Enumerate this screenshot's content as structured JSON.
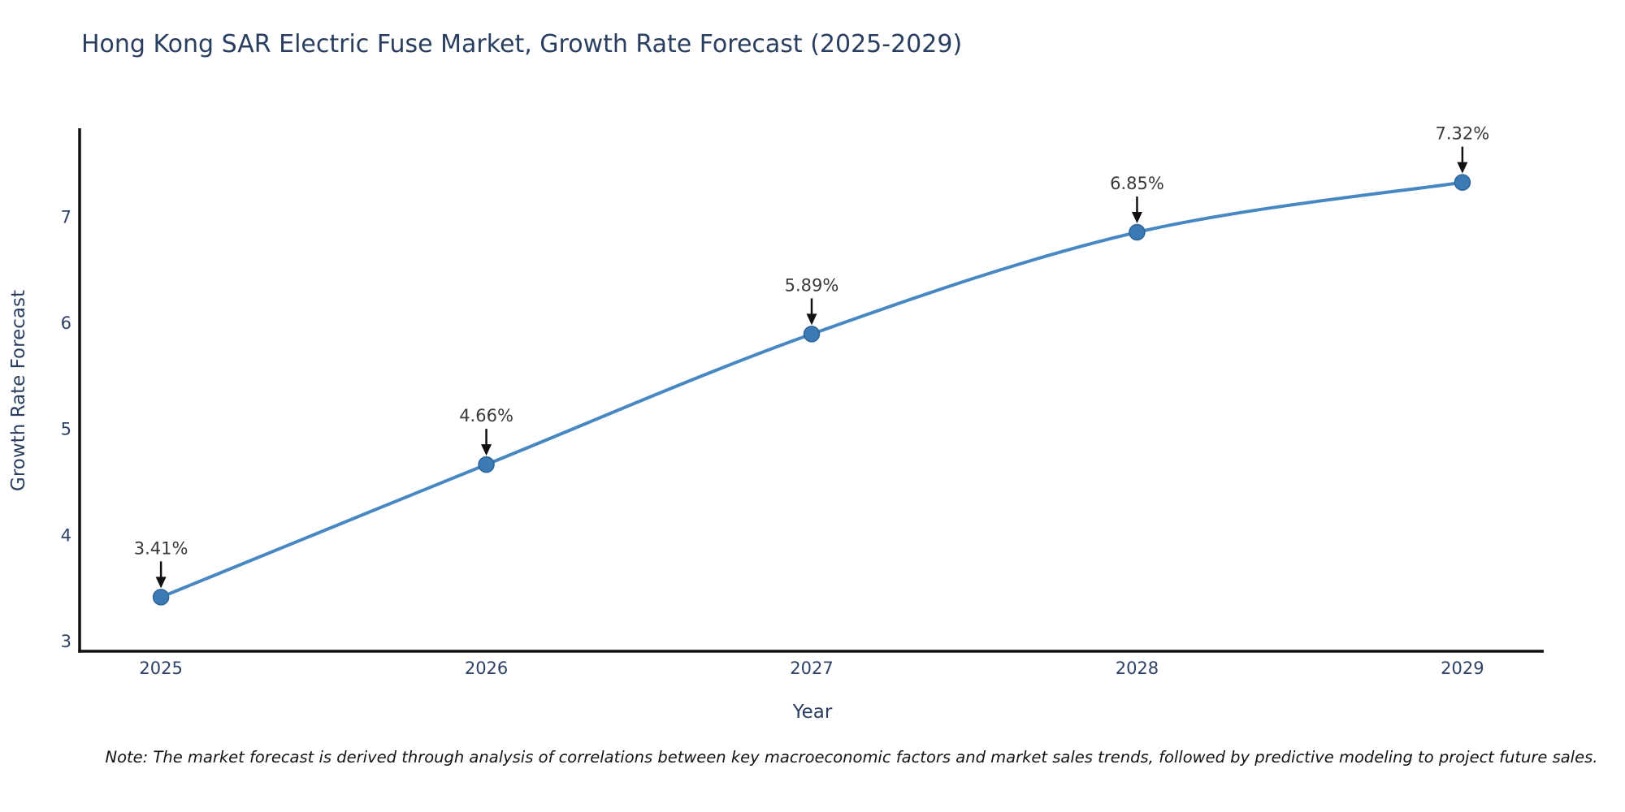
{
  "chart_data": {
    "type": "line",
    "title": "Hong Kong SAR Electric Fuse Market, Growth Rate Forecast (2025-2029)",
    "xlabel": "Year",
    "ylabel": "Growth Rate Forecast",
    "x": [
      2025,
      2026,
      2027,
      2028,
      2029
    ],
    "values": [
      3.41,
      4.66,
      5.89,
      6.85,
      7.32
    ],
    "point_labels": [
      "3.41%",
      "4.66%",
      "5.89%",
      "6.85%",
      "7.32%"
    ],
    "yticks": [
      3,
      4,
      5,
      6,
      7
    ],
    "ylim": [
      2.9,
      7.83
    ],
    "xlim": [
      2024.75,
      2029.25
    ],
    "grid": false,
    "legend_position": "none",
    "line_color": "#4788c3",
    "marker_color": "#3c7ab6",
    "marker_edge_color": "#2d6395",
    "arrow_color": "#111111",
    "axis_color": "#111111",
    "text_color": "#2a3f5f",
    "annotation_color": "#3a3a3a",
    "note": "Note: The market forecast is derived through analysis of correlations between key macroeconomic factors and market sales trends, followed by predictive modeling to project future sales."
  }
}
